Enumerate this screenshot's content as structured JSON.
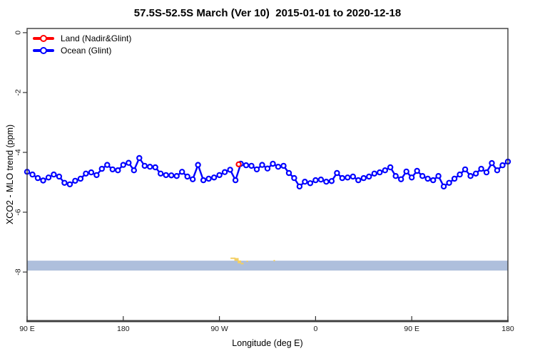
{
  "title": "57.5S-52.5S March (Ver 10)  2015-01-01 to 2020-12-18",
  "legend": {
    "items": [
      {
        "label": "Land (Nadir&Glint)",
        "color": "#ff0000"
      },
      {
        "label": "Ocean (Glint)",
        "color": "#0000ff"
      }
    ]
  },
  "chart_data": {
    "type": "line",
    "title": "57.5S-52.5S March (Ver 10)  2015-01-01 to 2020-12-18",
    "xlabel": "Longitude (deg E)",
    "ylabel": "XCO2 - MLO trend (ppm)",
    "xlim": [
      90,
      540
    ],
    "ylim": [
      -9.64,
      0.14
    ],
    "grid": false,
    "legend_position": "top-left",
    "x_ticks": [
      {
        "value": 90,
        "label": "90 E"
      },
      {
        "value": 180,
        "label": "180"
      },
      {
        "value": 270,
        "label": "90 W"
      },
      {
        "value": 360,
        "label": "0"
      },
      {
        "value": 450,
        "label": "90 E"
      },
      {
        "value": 540,
        "label": "180"
      }
    ],
    "y_ticks": [
      {
        "value": 0,
        "label": "0"
      },
      {
        "value": -2,
        "label": "-2"
      },
      {
        "value": -4,
        "label": "-4"
      },
      {
        "value": -6,
        "label": "-6"
      },
      {
        "value": -8,
        "label": "-8"
      }
    ],
    "series": [
      {
        "name": "Ocean (Glint)",
        "color": "#0000ff",
        "x_start": 90,
        "x_step": 5,
        "values": [
          -4.65,
          -4.74,
          -4.86,
          -4.94,
          -4.84,
          -4.74,
          -4.81,
          -5.02,
          -5.07,
          -4.95,
          -4.88,
          -4.71,
          -4.67,
          -4.76,
          -4.55,
          -4.42,
          -4.57,
          -4.6,
          -4.42,
          -4.35,
          -4.6,
          -4.19,
          -4.45,
          -4.48,
          -4.5,
          -4.71,
          -4.76,
          -4.77,
          -4.79,
          -4.65,
          -4.81,
          -4.9,
          -4.42,
          -4.93,
          -4.88,
          -4.84,
          -4.76,
          -4.66,
          -4.58,
          -4.93,
          -4.38,
          -4.43,
          -4.45,
          -4.57,
          -4.42,
          -4.54,
          -4.38,
          -4.48,
          -4.45,
          -4.69,
          -4.86,
          -5.14,
          -4.98,
          -5.03,
          -4.93,
          -4.91,
          -4.98,
          -4.96,
          -4.69,
          -4.86,
          -4.84,
          -4.81,
          -4.93,
          -4.86,
          -4.81,
          -4.71,
          -4.67,
          -4.6,
          -4.5,
          -4.79,
          -4.9,
          -4.64,
          -4.84,
          -4.62,
          -4.79,
          -4.88,
          -4.93,
          -4.79,
          -5.14,
          -5.02,
          -4.88,
          -4.74,
          -4.57,
          -4.79,
          -4.71,
          -4.55,
          -4.67,
          -4.36,
          -4.6,
          -4.43,
          -4.31
        ]
      },
      {
        "name": "Land (Nadir&Glint)",
        "color": "#ff0000",
        "x": [
          288
        ],
        "values": [
          -4.4
        ]
      }
    ],
    "elevation_band": {
      "color": "#aebfdc",
      "y_top": -7.62,
      "y_bottom": -7.95
    },
    "land_elevation_marks": {
      "color": "#f3cf63",
      "marks": [
        {
          "lon": 282.7,
          "ppm": -7.54,
          "w": 7,
          "h": 2
        },
        {
          "lon": 286.0,
          "ppm": -7.58,
          "w": 6,
          "h": 4
        },
        {
          "lon": 288.7,
          "ppm": -7.66,
          "w": 5,
          "h": 4
        },
        {
          "lon": 291.3,
          "ppm": -7.72,
          "w": 4,
          "h": 2
        },
        {
          "lon": 296.0,
          "ppm": -7.64,
          "w": 2,
          "h": 2
        },
        {
          "lon": 321.3,
          "ppm": -7.62,
          "w": 2,
          "h": 2
        }
      ]
    }
  }
}
